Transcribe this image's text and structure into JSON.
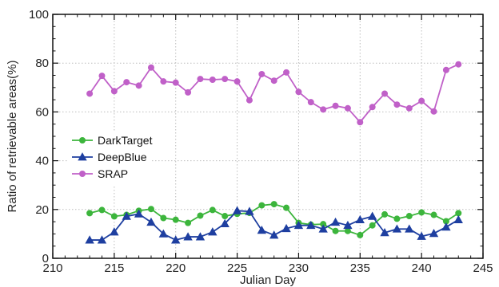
{
  "chart_data": {
    "type": "line",
    "title": "",
    "xlabel": "Julian Day",
    "ylabel": "Ratio of retrievable areas(%)",
    "xlim": [
      210,
      245
    ],
    "ylim": [
      0,
      100
    ],
    "xticks": [
      210,
      215,
      220,
      225,
      230,
      235,
      240,
      245
    ],
    "yticks": [
      0,
      20,
      40,
      60,
      80,
      100
    ],
    "grid": true,
    "legend_position": "left-middle",
    "x": [
      213,
      214,
      215,
      216,
      217,
      218,
      219,
      220,
      221,
      222,
      223,
      224,
      225,
      226,
      227,
      228,
      229,
      230,
      231,
      232,
      233,
      234,
      235,
      236,
      237,
      238,
      239,
      240,
      241,
      242,
      243
    ],
    "series": [
      {
        "name": "DarkTarget",
        "color": "#3cb53c",
        "marker": "circle",
        "values": [
          18.5,
          19.8,
          17.2,
          17.8,
          19.5,
          20.2,
          16.5,
          15.8,
          14.5,
          17.5,
          19.8,
          17.3,
          18.2,
          18.6,
          21.7,
          22.2,
          20.7,
          14.5,
          13.8,
          14.0,
          11.2,
          11.2,
          9.5,
          13.5,
          18.0,
          16.2,
          17.3,
          18.8,
          17.8,
          15.2,
          18.5
        ]
      },
      {
        "name": "DeepBlue",
        "color": "#1e3fa0",
        "marker": "triangle",
        "values": [
          7.5,
          7.5,
          10.8,
          17.2,
          18.2,
          14.8,
          10.0,
          7.5,
          8.8,
          8.8,
          10.8,
          14.2,
          19.5,
          19.2,
          11.5,
          9.5,
          12.2,
          13.5,
          13.5,
          12.0,
          14.8,
          13.5,
          15.8,
          17.2,
          10.5,
          12.0,
          12.0,
          9.0,
          10.2,
          12.8,
          15.8
        ]
      },
      {
        "name": "SRAP",
        "color": "#c060c8",
        "marker": "circle",
        "values": [
          67.5,
          74.8,
          68.5,
          72.2,
          70.8,
          78.2,
          72.5,
          72.0,
          68.0,
          73.5,
          73.2,
          73.5,
          72.5,
          64.8,
          75.5,
          72.8,
          76.2,
          68.2,
          64.0,
          61.0,
          62.5,
          61.5,
          55.8,
          62.0,
          67.5,
          63.0,
          61.5,
          64.5,
          60.2,
          77.2,
          79.5
        ]
      }
    ]
  }
}
